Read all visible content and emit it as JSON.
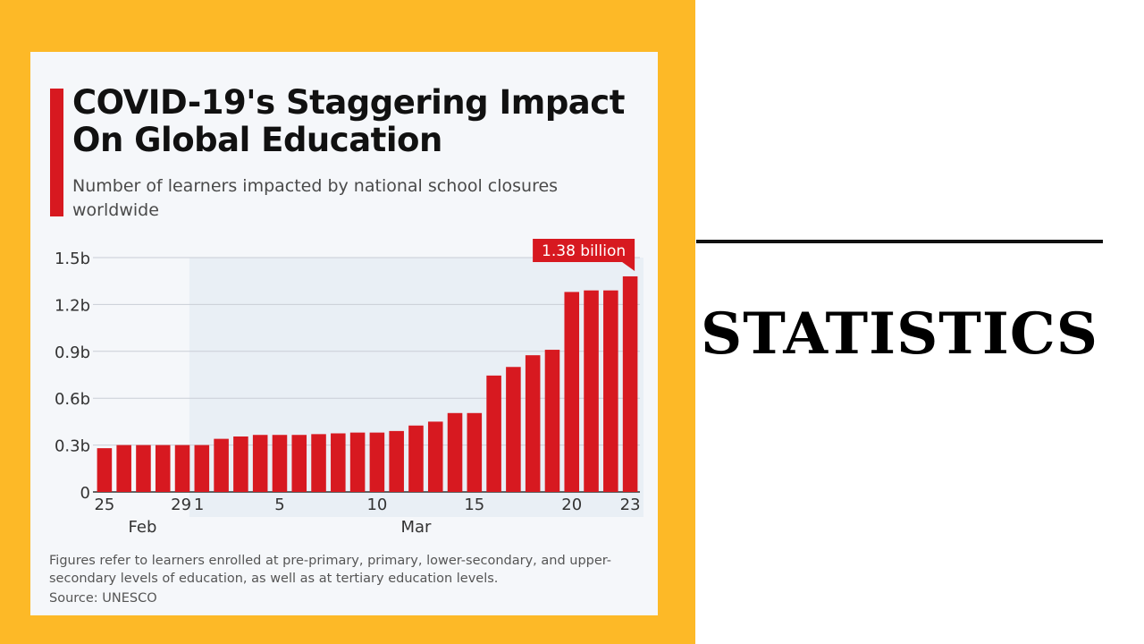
{
  "slide": {
    "heading": "STATISTICS"
  },
  "infographic": {
    "title": "COVID-19's Staggering Impact On Global Education",
    "subtitle": "Number of learners impacted by national school closures worldwide",
    "footnote": "Figures refer to learners enrolled at pre-primary, primary, lower-secondary, and upper-secondary levels of education, as well as at tertiary education levels.",
    "source": "Source: UNESCO"
  },
  "colors": {
    "bar": "#D71920",
    "panel": "#FDB927",
    "highlight_band": "#E9EFF5"
  },
  "chart_data": {
    "type": "bar",
    "ylim": [
      0,
      1.5
    ],
    "y_ticks": [
      {
        "value": 0,
        "label": "0"
      },
      {
        "value": 0.3,
        "label": "0.3b"
      },
      {
        "value": 0.6,
        "label": "0.6b"
      },
      {
        "value": 0.9,
        "label": "0.9b"
      },
      {
        "value": 1.2,
        "label": "1.2b"
      },
      {
        "value": 1.5,
        "label": "1.5b"
      }
    ],
    "categories": [
      "Feb 25",
      "Feb 26",
      "Feb 27",
      "Feb 28",
      "Feb 29",
      "Mar 1",
      "Mar 2",
      "Mar 3",
      "Mar 4",
      "Mar 5",
      "Mar 6",
      "Mar 7",
      "Mar 8",
      "Mar 9",
      "Mar 10",
      "Mar 11",
      "Mar 12",
      "Mar 13",
      "Mar 14",
      "Mar 15",
      "Mar 16",
      "Mar 17",
      "Mar 18",
      "Mar 19",
      "Mar 20",
      "Mar 21",
      "Mar 22",
      "Mar 23"
    ],
    "values": [
      0.28,
      0.3,
      0.3,
      0.3,
      0.3,
      0.3,
      0.34,
      0.355,
      0.365,
      0.365,
      0.365,
      0.37,
      0.375,
      0.38,
      0.38,
      0.39,
      0.425,
      0.45,
      0.505,
      0.505,
      0.745,
      0.8,
      0.875,
      0.91,
      1.28,
      1.29,
      1.29,
      1.38
    ],
    "x_tick_labels": [
      {
        "index": 0,
        "label": "25"
      },
      {
        "index": 4,
        "label": "29"
      },
      {
        "index": 5,
        "label": "1"
      },
      {
        "index": 9,
        "label": "5"
      },
      {
        "index": 14,
        "label": "10"
      },
      {
        "index": 19,
        "label": "15"
      },
      {
        "index": 24,
        "label": "20"
      },
      {
        "index": 27,
        "label": "23"
      }
    ],
    "month_labels": [
      {
        "label": "Feb",
        "center_index": 2
      },
      {
        "label": "Mar",
        "center_index": 16
      }
    ],
    "highlight_from_index": 5,
    "annotation": {
      "index": 27,
      "label": "1.38 billion"
    },
    "grid": true
  }
}
